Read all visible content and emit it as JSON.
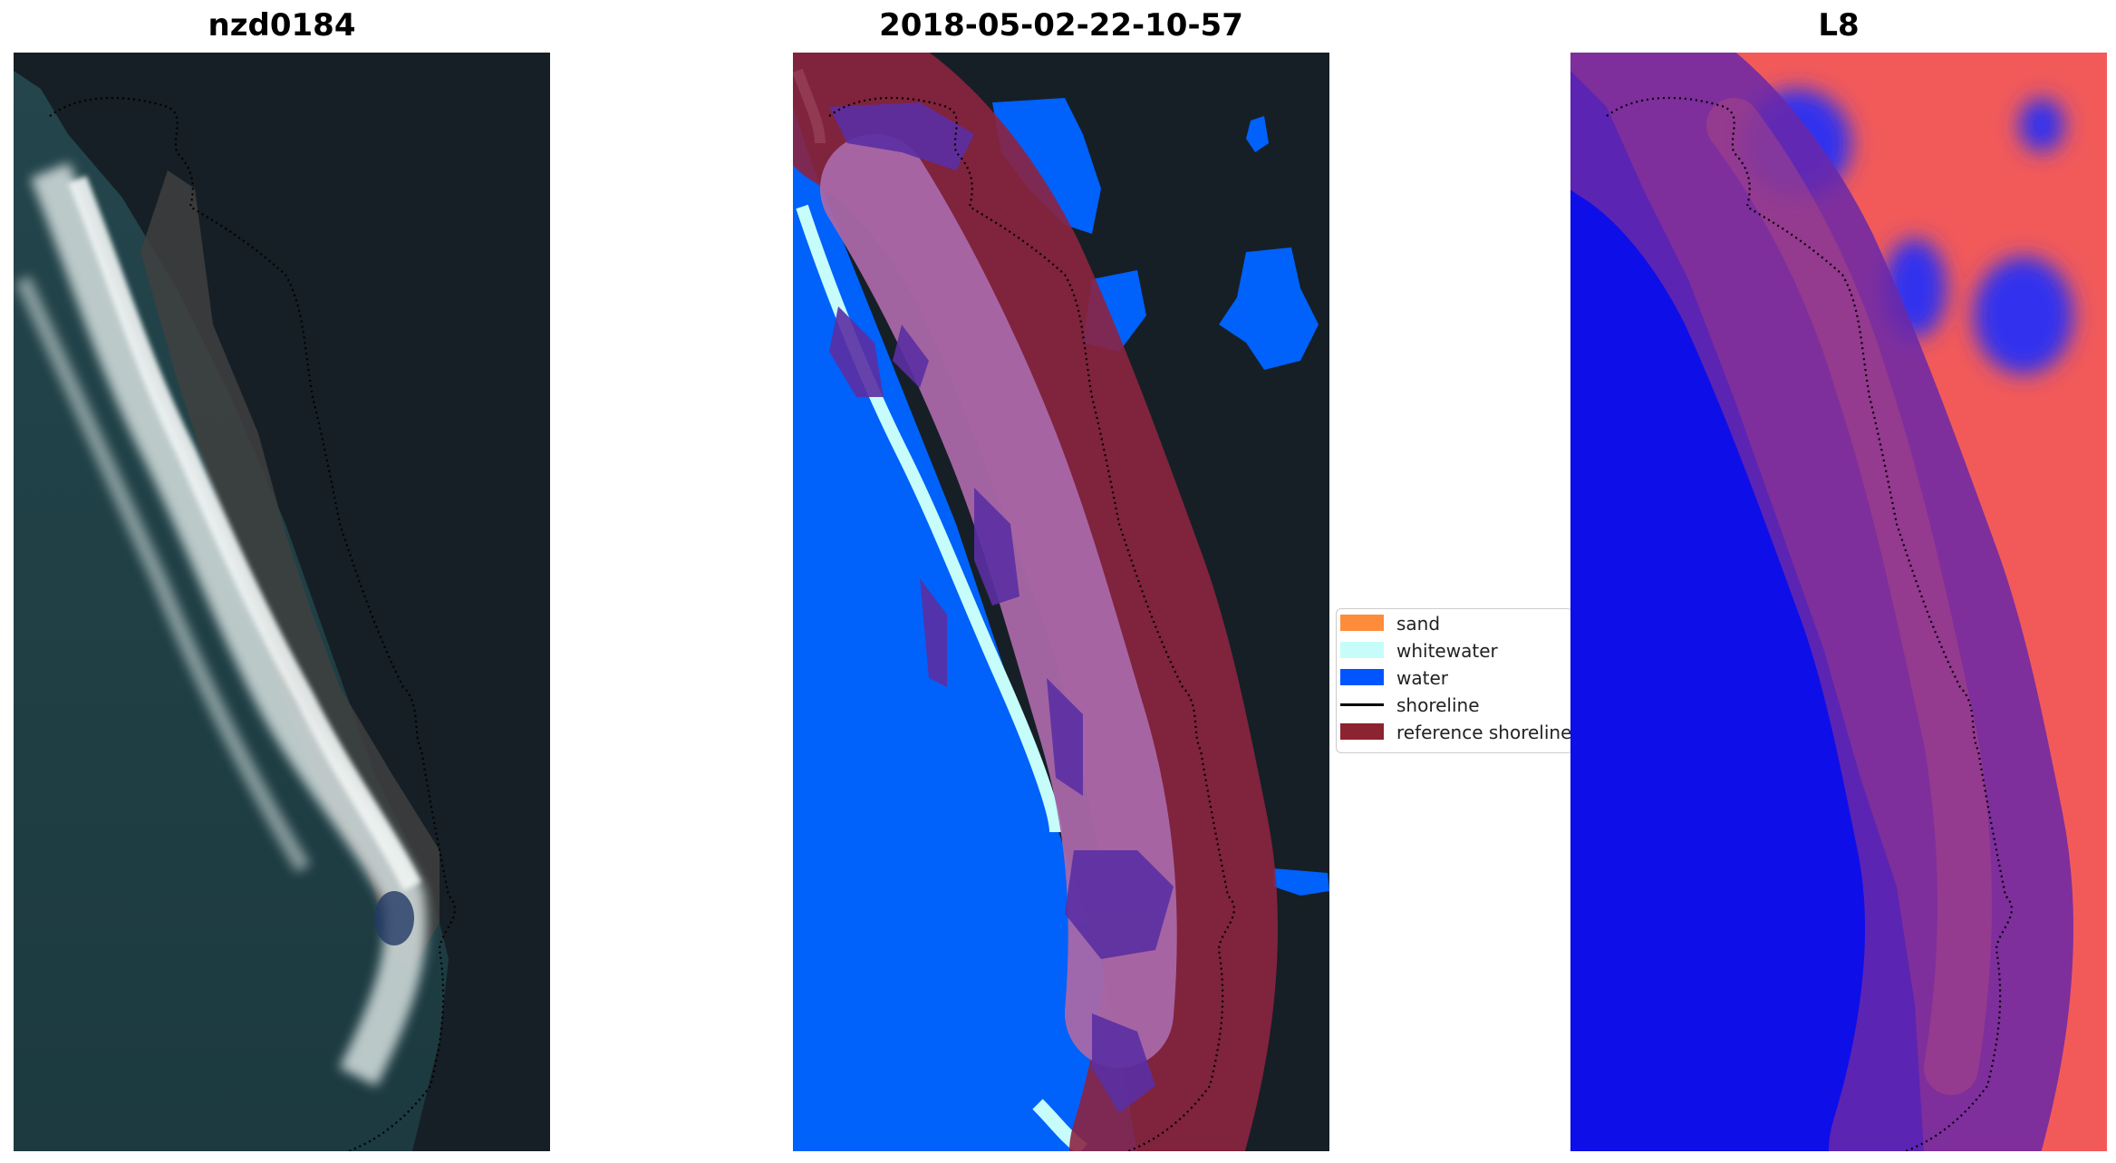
{
  "panels": [
    {
      "title": "nzd0184"
    },
    {
      "title": "2018-05-02-22-10-57"
    },
    {
      "title": "L8"
    }
  ],
  "legend": {
    "items": [
      {
        "label": "sand",
        "color": "#ff8c3a",
        "kind": "patch"
      },
      {
        "label": "whitewater",
        "color": "#c6fdfb",
        "kind": "patch"
      },
      {
        "label": "water",
        "color": "#0055ff",
        "kind": "patch"
      },
      {
        "label": "shoreline",
        "color": "#000000",
        "kind": "line"
      },
      {
        "label": "reference shoreline",
        "color": "#8c2330",
        "kind": "patch"
      }
    ]
  },
  "colors": {
    "ocean": "#1f3f46",
    "land": "#172027",
    "water_class": "#0061fb",
    "whitewater_class": "#c6fdfb",
    "reference_buffer": "#8c2340",
    "index_positive": "#ff3333",
    "index_negative": "#1010ee"
  }
}
